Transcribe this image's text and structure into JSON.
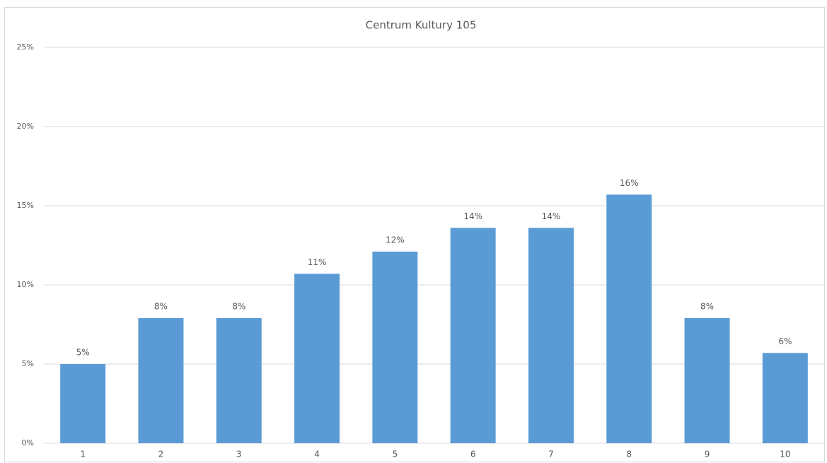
{
  "chart_data": {
    "type": "bar",
    "title": "Centrum Kultury 105",
    "categories": [
      "1",
      "2",
      "3",
      "4",
      "5",
      "6",
      "7",
      "8",
      "9",
      "10"
    ],
    "values": [
      5.0,
      7.9,
      7.9,
      10.7,
      12.1,
      13.6,
      13.6,
      15.7,
      7.9,
      5.7
    ],
    "value_labels": [
      "5%",
      "8%",
      "8%",
      "11%",
      "12%",
      "14%",
      "14%",
      "16%",
      "8%",
      "6%"
    ],
    "color": "#5b9bd5",
    "ylim": [
      0,
      25
    ],
    "yticks": [
      {
        "value": 0,
        "label": "0%"
      },
      {
        "value": 5,
        "label": "5%"
      },
      {
        "value": 10,
        "label": "10%"
      },
      {
        "value": 15,
        "label": "15%"
      },
      {
        "value": 20,
        "label": "20%"
      },
      {
        "value": 25,
        "label": "25%"
      }
    ],
    "grid": true
  }
}
